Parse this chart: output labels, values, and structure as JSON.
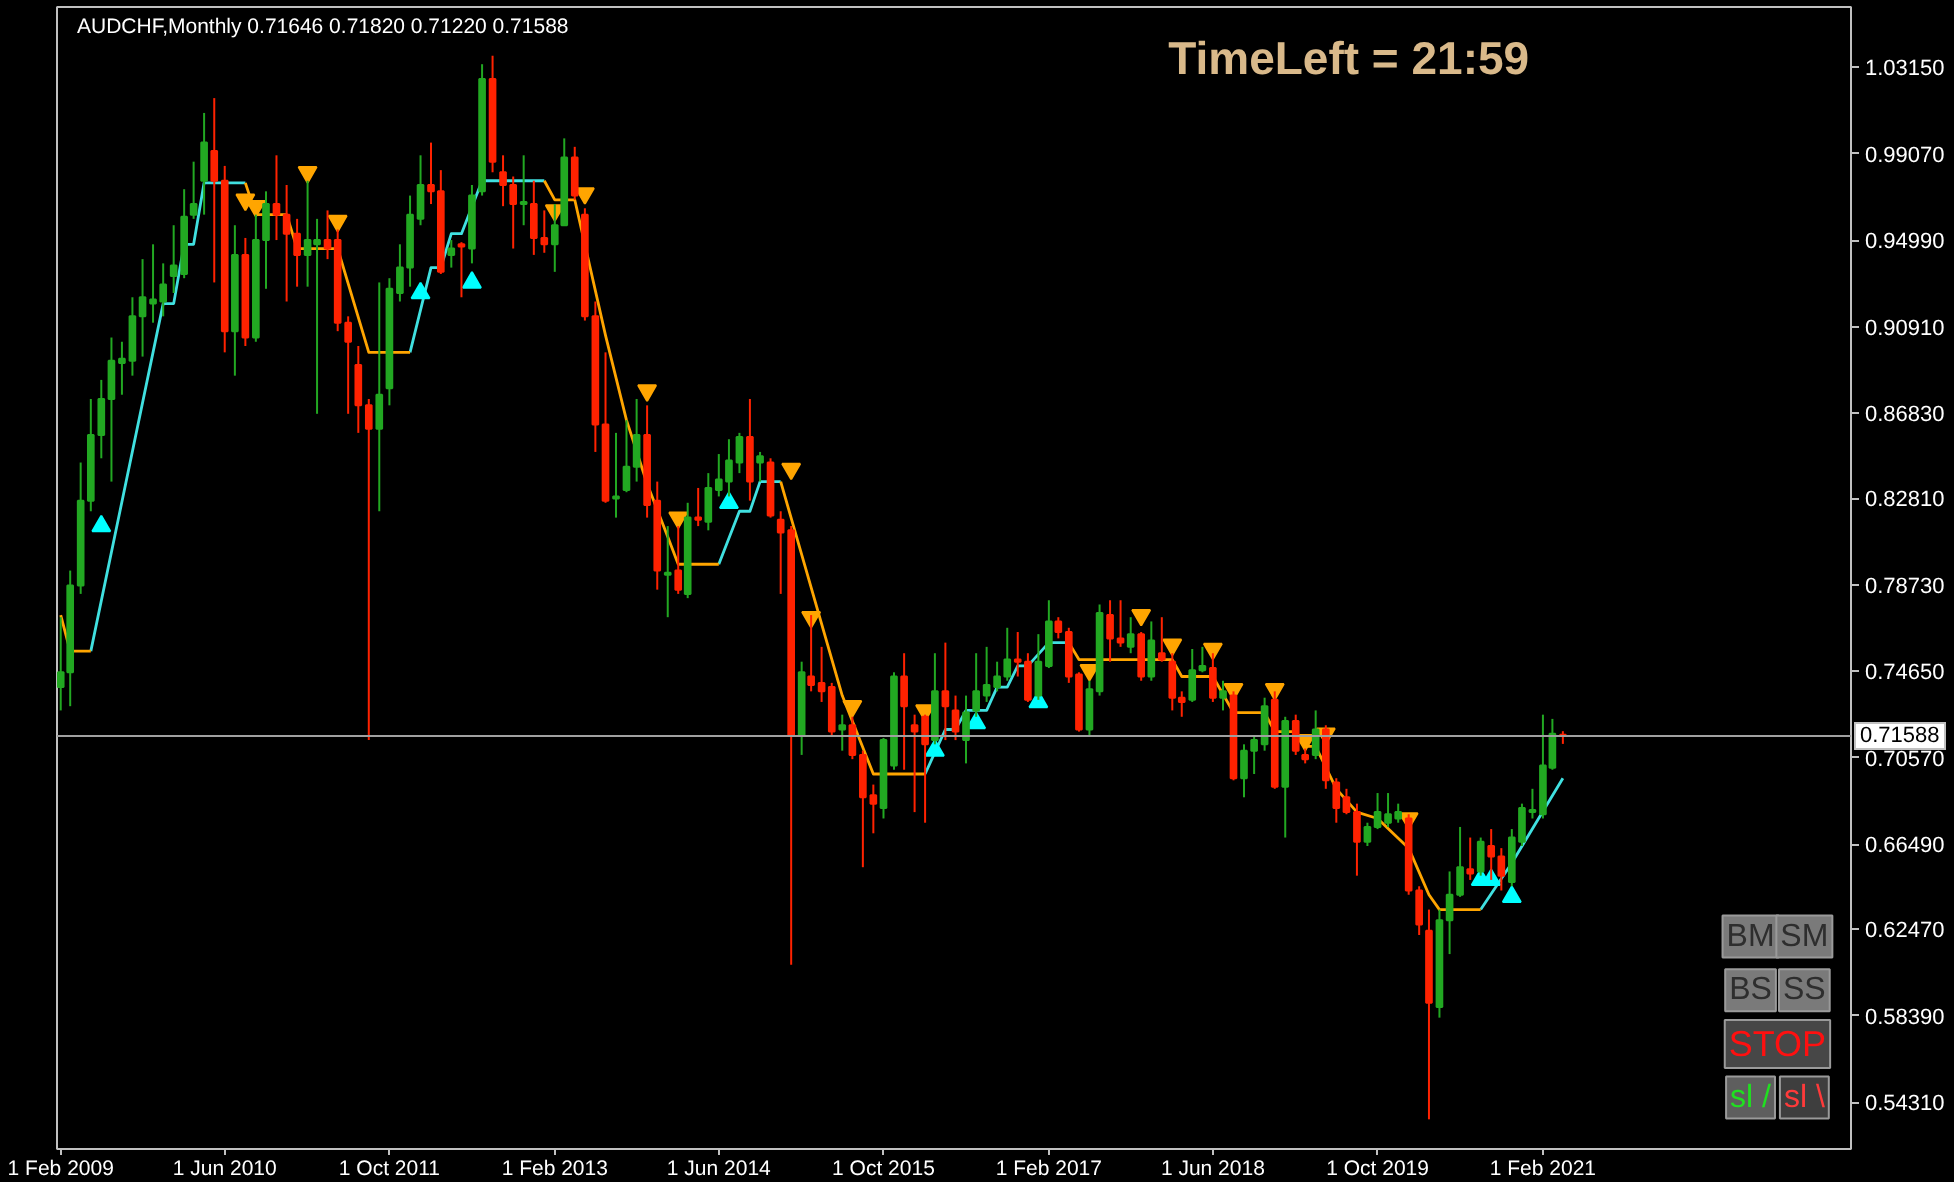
{
  "chart_data": {
    "type": "candlestick",
    "title": "AUDCHF,Monthly  0.71646 0.71820 0.71220 0.71588",
    "x": [
      "2009-02",
      "2009-03",
      "2009-04",
      "2009-05",
      "2009-06",
      "2009-07",
      "2009-08",
      "2009-09",
      "2009-10",
      "2009-11",
      "2009-12",
      "2010-01",
      "2010-02",
      "2010-03",
      "2010-04",
      "2010-05",
      "2010-06",
      "2010-07",
      "2010-08",
      "2010-09",
      "2010-10",
      "2010-11",
      "2010-12",
      "2011-01",
      "2011-02",
      "2011-03",
      "2011-04",
      "2011-05",
      "2011-06",
      "2011-07",
      "2011-08",
      "2011-09",
      "2011-10",
      "2011-11",
      "2011-12",
      "2012-01",
      "2012-02",
      "2012-03",
      "2012-04",
      "2012-05",
      "2012-06",
      "2012-07",
      "2012-08",
      "2012-09",
      "2012-10",
      "2012-11",
      "2012-12",
      "2013-01",
      "2013-02",
      "2013-03",
      "2013-04",
      "2013-05",
      "2013-06",
      "2013-07",
      "2013-08",
      "2013-09",
      "2013-10",
      "2013-11",
      "2013-12",
      "2014-01",
      "2014-02",
      "2014-03",
      "2014-04",
      "2014-05",
      "2014-06",
      "2014-07",
      "2014-08",
      "2014-09",
      "2014-10",
      "2014-11",
      "2014-12",
      "2015-01",
      "2015-02",
      "2015-03",
      "2015-04",
      "2015-05",
      "2015-06",
      "2015-07",
      "2015-08",
      "2015-09",
      "2015-10",
      "2015-11",
      "2015-12",
      "2016-01",
      "2016-02",
      "2016-03",
      "2016-04",
      "2016-05",
      "2016-06",
      "2016-07",
      "2016-08",
      "2016-09",
      "2016-10",
      "2016-11",
      "2016-12",
      "2017-01",
      "2017-02",
      "2017-03",
      "2017-04",
      "2017-05",
      "2017-06",
      "2017-07",
      "2017-08",
      "2017-09",
      "2017-10",
      "2017-11",
      "2017-12",
      "2018-01",
      "2018-02",
      "2018-03",
      "2018-04",
      "2018-05",
      "2018-06",
      "2018-07",
      "2018-08",
      "2018-09",
      "2018-10",
      "2018-11",
      "2018-12",
      "2019-01",
      "2019-02",
      "2019-03",
      "2019-04",
      "2019-05",
      "2019-06",
      "2019-07",
      "2019-08",
      "2019-09",
      "2019-10",
      "2019-11",
      "2019-12",
      "2020-01",
      "2020-02",
      "2020-03",
      "2020-04",
      "2020-05",
      "2020-06",
      "2020-07",
      "2020-08",
      "2020-09",
      "2020-10",
      "2020-11",
      "2020-12",
      "2021-01",
      "2021-02",
      "2021-03",
      "2021-04"
    ],
    "ohlc": [
      [
        0.739,
        0.772,
        0.728,
        0.746
      ],
      [
        0.746,
        0.794,
        0.73,
        0.787
      ],
      [
        0.787,
        0.845,
        0.783,
        0.827
      ],
      [
        0.827,
        0.875,
        0.822,
        0.858
      ],
      [
        0.858,
        0.884,
        0.847,
        0.875
      ],
      [
        0.875,
        0.904,
        0.836,
        0.893
      ],
      [
        0.892,
        0.902,
        0.877,
        0.894
      ],
      [
        0.893,
        0.923,
        0.886,
        0.914
      ],
      [
        0.914,
        0.941,
        0.895,
        0.923
      ],
      [
        0.92,
        0.948,
        0.911,
        0.922
      ],
      [
        0.921,
        0.939,
        0.914,
        0.929
      ],
      [
        0.933,
        0.957,
        0.925,
        0.938
      ],
      [
        0.934,
        0.974,
        0.932,
        0.961
      ],
      [
        0.962,
        0.987,
        0.96,
        0.967
      ],
      [
        0.978,
        1.01,
        0.962,
        0.996
      ],
      [
        0.992,
        1.017,
        0.93,
        0.978
      ],
      [
        0.978,
        0.985,
        0.897,
        0.907
      ],
      [
        0.907,
        0.957,
        0.886,
        0.943
      ],
      [
        0.943,
        0.951,
        0.9,
        0.904
      ],
      [
        0.904,
        0.962,
        0.902,
        0.95
      ],
      [
        0.95,
        0.973,
        0.927,
        0.967
      ],
      [
        0.967,
        0.99,
        0.95,
        0.962
      ],
      [
        0.962,
        0.976,
        0.921,
        0.953
      ],
      [
        0.953,
        0.96,
        0.928,
        0.943
      ],
      [
        0.943,
        0.978,
        0.928,
        0.95
      ],
      [
        0.948,
        0.96,
        0.868,
        0.95
      ],
      [
        0.95,
        0.964,
        0.941,
        0.946
      ],
      [
        0.95,
        0.955,
        0.907,
        0.911
      ],
      [
        0.911,
        0.914,
        0.868,
        0.902
      ],
      [
        0.891,
        0.9,
        0.859,
        0.872
      ],
      [
        0.872,
        0.875,
        0.714,
        0.861
      ],
      [
        0.861,
        0.93,
        0.822,
        0.877
      ],
      [
        0.88,
        0.932,
        0.872,
        0.927
      ],
      [
        0.925,
        0.948,
        0.921,
        0.937
      ],
      [
        0.937,
        0.971,
        0.928,
        0.962
      ],
      [
        0.96,
        0.99,
        0.957,
        0.976
      ],
      [
        0.976,
        0.996,
        0.967,
        0.973
      ],
      [
        0.973,
        0.983,
        0.934,
        0.935
      ],
      [
        0.943,
        0.95,
        0.937,
        0.946
      ],
      [
        0.948,
        0.949,
        0.923,
        0.947
      ],
      [
        0.946,
        0.976,
        0.939,
        0.971
      ],
      [
        0.973,
        1.033,
        0.971,
        1.026
      ],
      [
        1.026,
        1.037,
        0.982,
        0.987
      ],
      [
        0.982,
        0.99,
        0.966,
        0.976
      ],
      [
        0.976,
        0.98,
        0.946,
        0.967
      ],
      [
        0.967,
        0.99,
        0.957,
        0.968
      ],
      [
        0.967,
        0.978,
        0.943,
        0.951
      ],
      [
        0.951,
        0.964,
        0.944,
        0.948
      ],
      [
        0.948,
        0.967,
        0.935,
        0.957
      ],
      [
        0.957,
        0.998,
        0.957,
        0.989
      ],
      [
        0.989,
        0.994,
        0.969,
        0.971
      ],
      [
        0.962,
        0.965,
        0.912,
        0.914
      ],
      [
        0.914,
        0.921,
        0.85,
        0.863
      ],
      [
        0.863,
        0.897,
        0.826,
        0.827
      ],
      [
        0.828,
        0.859,
        0.819,
        0.829
      ],
      [
        0.832,
        0.865,
        0.831,
        0.843
      ],
      [
        0.843,
        0.875,
        0.836,
        0.858
      ],
      [
        0.858,
        0.872,
        0.819,
        0.825
      ],
      [
        0.827,
        0.836,
        0.785,
        0.794
      ],
      [
        0.792,
        0.815,
        0.772,
        0.793
      ],
      [
        0.794,
        0.815,
        0.783,
        0.785
      ],
      [
        0.783,
        0.826,
        0.781,
        0.819
      ],
      [
        0.819,
        0.833,
        0.815,
        0.818
      ],
      [
        0.817,
        0.84,
        0.813,
        0.833
      ],
      [
        0.832,
        0.849,
        0.829,
        0.837
      ],
      [
        0.836,
        0.856,
        0.829,
        0.846
      ],
      [
        0.845,
        0.859,
        0.84,
        0.857
      ],
      [
        0.857,
        0.875,
        0.827,
        0.836
      ],
      [
        0.845,
        0.85,
        0.836,
        0.848
      ],
      [
        0.845,
        0.847,
        0.819,
        0.82
      ],
      [
        0.818,
        0.822,
        0.783,
        0.812
      ],
      [
        0.813,
        0.815,
        0.608,
        0.716
      ],
      [
        0.716,
        0.751,
        0.707,
        0.746
      ],
      [
        0.744,
        0.773,
        0.737,
        0.74
      ],
      [
        0.741,
        0.758,
        0.732,
        0.737
      ],
      [
        0.739,
        0.741,
        0.716,
        0.718
      ],
      [
        0.719,
        0.726,
        0.709,
        0.721
      ],
      [
        0.721,
        0.725,
        0.705,
        0.707
      ],
      [
        0.707,
        0.709,
        0.654,
        0.687
      ],
      [
        0.688,
        0.693,
        0.67,
        0.684
      ],
      [
        0.682,
        0.715,
        0.677,
        0.714
      ],
      [
        0.702,
        0.746,
        0.7,
        0.744
      ],
      [
        0.744,
        0.755,
        0.7,
        0.73
      ],
      [
        0.721,
        0.726,
        0.68,
        0.718
      ],
      [
        0.725,
        0.726,
        0.675,
        0.712
      ],
      [
        0.714,
        0.755,
        0.712,
        0.737
      ],
      [
        0.737,
        0.76,
        0.714,
        0.73
      ],
      [
        0.728,
        0.735,
        0.714,
        0.718
      ],
      [
        0.714,
        0.735,
        0.703,
        0.727
      ],
      [
        0.728,
        0.755,
        0.725,
        0.737
      ],
      [
        0.735,
        0.758,
        0.732,
        0.74
      ],
      [
        0.739,
        0.751,
        0.737,
        0.744
      ],
      [
        0.744,
        0.767,
        0.742,
        0.752
      ],
      [
        0.752,
        0.765,
        0.744,
        0.751
      ],
      [
        0.751,
        0.755,
        0.732,
        0.733
      ],
      [
        0.735,
        0.764,
        0.733,
        0.751
      ],
      [
        0.749,
        0.78,
        0.748,
        0.77
      ],
      [
        0.77,
        0.772,
        0.762,
        0.765
      ],
      [
        0.765,
        0.767,
        0.741,
        0.744
      ],
      [
        0.745,
        0.746,
        0.718,
        0.719
      ],
      [
        0.719,
        0.742,
        0.716,
        0.738
      ],
      [
        0.737,
        0.778,
        0.735,
        0.774
      ],
      [
        0.773,
        0.78,
        0.751,
        0.762
      ],
      [
        0.762,
        0.78,
        0.758,
        0.76
      ],
      [
        0.758,
        0.772,
        0.755,
        0.764
      ],
      [
        0.764,
        0.765,
        0.742,
        0.744
      ],
      [
        0.744,
        0.77,
        0.742,
        0.761
      ],
      [
        0.755,
        0.772,
        0.751,
        0.752
      ],
      [
        0.751,
        0.755,
        0.728,
        0.734
      ],
      [
        0.734,
        0.737,
        0.725,
        0.732
      ],
      [
        0.733,
        0.757,
        0.732,
        0.747
      ],
      [
        0.747,
        0.758,
        0.746,
        0.749
      ],
      [
        0.748,
        0.755,
        0.732,
        0.734
      ],
      [
        0.734,
        0.742,
        0.728,
        0.737
      ],
      [
        0.735,
        0.737,
        0.695,
        0.696
      ],
      [
        0.696,
        0.712,
        0.687,
        0.709
      ],
      [
        0.709,
        0.716,
        0.698,
        0.714
      ],
      [
        0.712,
        0.734,
        0.709,
        0.73
      ],
      [
        0.733,
        0.737,
        0.691,
        0.692
      ],
      [
        0.692,
        0.725,
        0.668,
        0.723
      ],
      [
        0.723,
        0.726,
        0.707,
        0.709
      ],
      [
        0.707,
        0.71,
        0.703,
        0.705
      ],
      [
        0.707,
        0.728,
        0.705,
        0.719
      ],
      [
        0.719,
        0.721,
        0.691,
        0.695
      ],
      [
        0.694,
        0.696,
        0.675,
        0.682
      ],
      [
        0.687,
        0.691,
        0.679,
        0.68
      ],
      [
        0.68,
        0.684,
        0.65,
        0.666
      ],
      [
        0.666,
        0.675,
        0.664,
        0.673
      ],
      [
        0.673,
        0.689,
        0.672,
        0.68
      ],
      [
        0.675,
        0.689,
        0.673,
        0.679
      ],
      [
        0.677,
        0.684,
        0.675,
        0.68
      ],
      [
        0.677,
        0.679,
        0.641,
        0.643
      ],
      [
        0.643,
        0.645,
        0.622,
        0.627
      ],
      [
        0.624,
        0.634,
        0.535,
        0.59
      ],
      [
        0.588,
        0.634,
        0.583,
        0.629
      ],
      [
        0.629,
        0.652,
        0.613,
        0.641
      ],
      [
        0.641,
        0.673,
        0.64,
        0.654
      ],
      [
        0.653,
        0.668,
        0.648,
        0.651
      ],
      [
        0.652,
        0.668,
        0.65,
        0.666
      ],
      [
        0.664,
        0.672,
        0.648,
        0.659
      ],
      [
        0.659,
        0.663,
        0.643,
        0.65
      ],
      [
        0.647,
        0.672,
        0.645,
        0.668
      ],
      [
        0.666,
        0.684,
        0.664,
        0.682
      ],
      [
        0.68,
        0.691,
        0.677,
        0.681
      ],
      [
        0.679,
        0.726,
        0.677,
        0.702
      ],
      [
        0.701,
        0.724,
        0.7,
        0.717
      ],
      [
        0.71646,
        0.7182,
        0.7122,
        0.71588
      ]
    ],
    "colors": [
      "#22a822",
      "#22a822",
      "#22a822",
      "#22a822",
      "#22a822",
      "#22a822",
      "#22a822",
      "#22a822",
      "#22a822",
      "#22a822",
      "#22a822",
      "#22a822",
      "#22a822",
      "#22a822",
      "#22a822",
      "#ff2200",
      "#ff2200",
      "#22a822",
      "#ff2200",
      "#22a822",
      "#22a822",
      "#ff2200",
      "#ff2200",
      "#ff2200",
      "#22a822",
      "#22a822",
      "#ff2200",
      "#ff2200",
      "#ff2200",
      "#ff2200",
      "#ff2200",
      "#22a822",
      "#22a822",
      "#22a822",
      "#22a822",
      "#22a822",
      "#ff2200",
      "#ff2200",
      "#22a822",
      "#ff2200",
      "#22a822",
      "#22a822",
      "#ff2200",
      "#ff2200",
      "#ff2200",
      "#22a822",
      "#ff2200",
      "#ff2200",
      "#22a822",
      "#22a822",
      "#ff2200",
      "#ff2200",
      "#ff2200",
      "#ff2200",
      "#22a822",
      "#22a822",
      "#22a822",
      "#ff2200",
      "#ff2200",
      "#22a822",
      "#ff2200",
      "#22a822",
      "#ff2200",
      "#22a822",
      "#22a822",
      "#22a822",
      "#22a822",
      "#ff2200",
      "#22a822",
      "#ff2200",
      "#ff2200",
      "#ff2200",
      "#22a822",
      "#ff2200",
      "#ff2200",
      "#ff2200",
      "#22a822",
      "#ff2200",
      "#ff2200",
      "#ff2200",
      "#22a822",
      "#22a822",
      "#ff2200",
      "#ff2200",
      "#ff2200",
      "#22a822",
      "#ff2200",
      "#ff2200",
      "#22a822",
      "#22a822",
      "#22a822",
      "#22a822",
      "#22a822",
      "#ff2200",
      "#ff2200",
      "#22a822",
      "#22a822",
      "#ff2200",
      "#ff2200",
      "#ff2200",
      "#22a822",
      "#22a822",
      "#ff2200",
      "#ff2200",
      "#22a822",
      "#ff2200",
      "#22a822",
      "#ff2200",
      "#ff2200",
      "#ff2200",
      "#22a822",
      "#22a822",
      "#ff2200",
      "#22a822",
      "#ff2200",
      "#22a822",
      "#22a822",
      "#22a822",
      "#ff2200",
      "#22a822",
      "#ff2200",
      "#ff2200",
      "#22a822",
      "#ff2200",
      "#ff2200",
      "#ff2200",
      "#ff2200",
      "#22a822",
      "#22a822",
      "#22a822",
      "#22a822",
      "#ff2200",
      "#ff2200",
      "#ff2200",
      "#22a822",
      "#22a822",
      "#22a822",
      "#ff2200",
      "#22a822",
      "#ff2200",
      "#ff2200",
      "#22a822",
      "#22a822",
      "#22a822",
      "#22a822",
      "#22a822",
      "#ff2200"
    ],
    "series": [
      {
        "type": "line",
        "color": "#40e0e0",
        "x": [
          "2009-05",
          "2009-12",
          "2010-01",
          "2010-02",
          "2010-03",
          "2010-04",
          "2010-08",
          "2010-09",
          "2011-12",
          "2012-02",
          "2012-03",
          "2012-04",
          "2012-05",
          "2012-07",
          "2013-01",
          "2013-02",
          "2014-06",
          "2014-08",
          "2014-09",
          "2014-10",
          "2014-12",
          "2015-01",
          "2016-02",
          "2016-04",
          "2016-05",
          "2016-06",
          "2016-08",
          "2016-09",
          "2016-10",
          "2016-11",
          "2016-12",
          "2017-02",
          "2017-04",
          "2017-05",
          "2020-08",
          "2020-11",
          "2021-04"
        ],
        "values": [
          0.756,
          0.92,
          0.92,
          0.948,
          0.948,
          0.977,
          0.977,
          null,
          0.897,
          0.937,
          0.937,
          0.953,
          0.953,
          0.978,
          0.978,
          null,
          0.797,
          0.822,
          0.822,
          0.836,
          0.836,
          null,
          0.698,
          0.719,
          0.719,
          0.728,
          0.728,
          0.739,
          0.739,
          0.749,
          0.749,
          0.76,
          0.76,
          null,
          0.634,
          0.656,
          0.696
        ]
      },
      {
        "type": "line",
        "color": "#ffa500",
        "x": [
          "2009-02",
          "2009-03",
          "2009-05",
          "2009-06",
          "2010-08",
          "2010-09",
          "2010-12",
          "2011-01",
          "2011-05",
          "2011-08",
          "2011-12",
          "2012-01",
          "2013-01",
          "2013-02",
          "2013-04",
          "2013-07",
          "2013-09",
          "2013-11",
          "2014-01",
          "2014-02",
          "2014-06",
          "2014-07",
          "2014-12",
          "2015-06",
          "2015-09",
          "2016-02",
          "2016-03",
          "2017-04",
          "2017-05",
          "2018-02",
          "2018-03",
          "2018-06",
          "2018-08",
          "2018-11",
          "2018-12",
          "2019-02",
          "2019-03",
          "2019-04",
          "2019-06",
          "2019-08",
          "2019-10",
          "2020-01",
          "2020-03",
          "2020-04",
          "2020-08"
        ],
        "values": [
          0.773,
          0.756,
          0.756,
          null,
          0.977,
          0.962,
          0.962,
          0.946,
          0.946,
          0.897,
          0.897,
          null,
          0.978,
          0.969,
          0.969,
          0.905,
          0.865,
          0.835,
          0.81,
          0.797,
          0.797,
          null,
          0.836,
          0.735,
          0.698,
          0.698,
          null,
          0.76,
          0.752,
          0.752,
          0.744,
          0.744,
          0.727,
          0.727,
          0.718,
          0.718,
          0.711,
          0.711,
          0.691,
          0.68,
          0.677,
          0.663,
          0.641,
          0.634,
          0.634
        ]
      },
      {
        "type": "scatter",
        "marker": "triangle",
        "color": "#00ffff",
        "x": [
          "2009-06",
          "2012-01",
          "2012-06",
          "2014-07",
          "2016-03",
          "2016-07",
          "2017-01",
          "2020-08",
          "2020-09",
          "2020-11"
        ],
        "values": [
          0.815,
          0.925,
          0.93,
          0.826,
          0.709,
          0.722,
          0.732,
          0.648,
          0.648,
          0.64
        ]
      },
      {
        "type": "scatter",
        "marker": "triangle",
        "color": "#ffa500",
        "x": [
          "2010-08",
          "2010-09",
          "2011-02",
          "2011-05",
          "2013-02",
          "2013-05",
          "2013-11",
          "2014-02",
          "2015-01",
          "2015-03",
          "2015-07",
          "2016-02",
          "2017-06",
          "2017-11",
          "2018-02",
          "2018-06",
          "2018-08",
          "2018-12",
          "2019-03",
          "2019-05",
          "2020-01"
        ],
        "values": [
          0.969,
          0.966,
          0.982,
          0.959,
          0.964,
          0.972,
          0.879,
          0.819,
          0.842,
          0.772,
          0.73,
          0.728,
          0.747,
          0.773,
          0.759,
          0.757,
          0.738,
          0.738,
          0.714,
          0.717,
          0.677
        ]
      }
    ],
    "xlim": [
      "2009-01-21",
      "2023-08-01"
    ],
    "xticks": [
      {
        "value": "2009-02-01",
        "label": "1 Feb 2009"
      },
      {
        "value": "2010-06-01",
        "label": "1 Jun 2010"
      },
      {
        "value": "2011-10-01",
        "label": "1 Oct 2011"
      },
      {
        "value": "2013-02-01",
        "label": "1 Feb 2013"
      },
      {
        "value": "2014-06-01",
        "label": "1 Jun 2014"
      },
      {
        "value": "2015-10-01",
        "label": "1 Oct 2015"
      },
      {
        "value": "2017-02-01",
        "label": "1 Feb 2017"
      },
      {
        "value": "2018-06-01",
        "label": "1 Jun 2018"
      },
      {
        "value": "2019-10-01",
        "label": "1 Oct 2019"
      },
      {
        "value": "2021-02-01",
        "label": "1 Feb 2021"
      }
    ],
    "ylim": [
      0.521,
      1.06
    ],
    "yticks": [
      {
        "value": 1.0315,
        "label": "1.03150"
      },
      {
        "value": 0.9907,
        "label": "0.99070"
      },
      {
        "value": 0.9499,
        "label": "0.94990"
      },
      {
        "value": 0.9091,
        "label": "0.90910"
      },
      {
        "value": 0.8683,
        "label": "0.86830"
      },
      {
        "value": 0.8281,
        "label": "0.82810"
      },
      {
        "value": 0.7873,
        "label": "0.78730"
      },
      {
        "value": 0.7465,
        "label": "0.74650"
      },
      {
        "value": 0.7057,
        "label": "0.70570"
      },
      {
        "value": 0.6649,
        "label": "0.66490"
      },
      {
        "value": 0.6247,
        "label": "0.62470"
      },
      {
        "value": 0.5839,
        "label": "0.58390"
      },
      {
        "value": 0.5431,
        "label": "0.54310"
      }
    ],
    "ref_lines": [
      {
        "axis": "y",
        "value": 0.71588,
        "label": "0.71588",
        "color": "#a0a0a0"
      }
    ],
    "annotations": [
      "TimeLeft = 21:59",
      "BM",
      "SM",
      "BS",
      "SS",
      "STOP",
      "sl /",
      "sl \\"
    ]
  }
}
